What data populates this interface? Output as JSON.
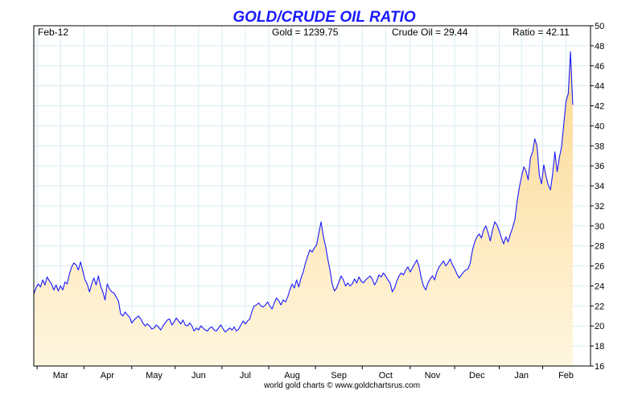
{
  "header": {
    "title": "GOLD/CRUDE OIL RATIO",
    "period": "Feb-12",
    "gold": "Gold = 1239.75",
    "crude": "Crude Oil = 29.44",
    "ratio": "Ratio = 42.11"
  },
  "footer": {
    "credit": "world gold charts © www.goldchartsrus.com"
  },
  "colors": {
    "title": "#1a1aff",
    "line": "#1a1aff",
    "fill_top": "#fbd890",
    "fill_bottom": "#fff6e0",
    "grid": "#d8ecf0"
  },
  "chart_data": {
    "type": "area",
    "title": "GOLD/CRUDE OIL RATIO",
    "xlabel": "",
    "ylabel": "",
    "ylim": [
      16,
      50
    ],
    "yticks": [
      16,
      18,
      20,
      22,
      24,
      26,
      28,
      30,
      32,
      34,
      36,
      38,
      40,
      42,
      44,
      46,
      48,
      50
    ],
    "y_axis_position": "right",
    "grid": true,
    "xlim_index": [
      0,
      250
    ],
    "x_month_labels": [
      {
        "label": "Mar",
        "index": 12
      },
      {
        "label": "Apr",
        "index": 33
      },
      {
        "label": "May",
        "index": 54
      },
      {
        "label": "Jun",
        "index": 74
      },
      {
        "label": "Jul",
        "index": 95
      },
      {
        "label": "Aug",
        "index": 116
      },
      {
        "label": "Sep",
        "index": 137
      },
      {
        "label": "Oct",
        "index": 158
      },
      {
        "label": "Nov",
        "index": 179
      },
      {
        "label": "Dec",
        "index": 199
      },
      {
        "label": "Jan",
        "index": 219
      },
      {
        "label": "Feb",
        "index": 239
      }
    ],
    "series": [
      {
        "values": [
          23.2,
          23.8,
          24.2,
          23.9,
          24.6,
          24.1,
          24.9,
          24.5,
          24.2,
          23.6,
          24.1,
          23.5,
          24.0,
          23.6,
          24.4,
          24.2,
          25.2,
          25.9,
          26.3,
          26.1,
          25.6,
          26.4,
          25.5,
          24.6,
          24.2,
          23.4,
          24.2,
          24.8,
          24.1,
          25.0,
          24.0,
          23.4,
          22.6,
          24.2,
          23.7,
          23.4,
          23.3,
          22.9,
          22.5,
          21.2,
          21.0,
          21.4,
          21.1,
          20.9,
          20.3,
          20.6,
          20.8,
          21.0,
          20.7,
          20.3,
          20.0,
          20.2,
          20.0,
          19.7,
          19.8,
          20.1,
          19.9,
          19.6,
          20.0,
          20.3,
          20.6,
          20.7,
          20.1,
          20.4,
          20.8,
          20.5,
          20.2,
          20.6,
          20.1,
          20.0,
          20.3,
          20.0,
          19.5,
          19.8,
          19.6,
          20.0,
          19.8,
          19.6,
          19.5,
          19.8,
          19.9,
          19.6,
          19.5,
          19.8,
          20.1,
          19.7,
          19.4,
          19.6,
          19.8,
          19.6,
          19.9,
          19.5,
          19.7,
          20.1,
          20.5,
          20.2,
          20.5,
          20.7,
          21.5,
          22.0,
          22.1,
          22.3,
          22.0,
          21.9,
          22.1,
          22.4,
          22.0,
          21.7,
          22.3,
          22.8,
          22.5,
          22.1,
          22.6,
          22.4,
          22.9,
          23.6,
          24.2,
          23.8,
          24.6,
          23.9,
          24.8,
          25.4,
          26.3,
          27.0,
          27.6,
          27.4,
          27.8,
          28.1,
          29.3,
          30.4,
          29.0,
          28.0,
          26.7,
          25.6,
          24.2,
          23.5,
          23.8,
          24.4,
          25.0,
          24.6,
          24.0,
          24.3,
          24.0,
          24.2,
          24.7,
          24.3,
          24.9,
          24.5,
          24.3,
          24.6,
          24.8,
          25.0,
          24.7,
          24.1,
          24.5,
          25.1,
          24.9,
          25.3,
          25.0,
          24.6,
          24.3,
          23.4,
          23.8,
          24.5,
          25.0,
          25.3,
          25.1,
          25.6,
          25.9,
          25.4,
          25.8,
          26.2,
          26.6,
          25.9,
          24.8,
          24.0,
          23.6,
          24.3,
          24.7,
          25.0,
          24.6,
          25.4,
          25.9,
          26.2,
          26.5,
          26.0,
          26.3,
          26.7,
          26.1,
          25.7,
          25.2,
          24.8,
          25.1,
          25.4,
          25.6,
          25.7,
          26.3,
          27.6,
          28.4,
          28.9,
          29.2,
          28.8,
          29.6,
          30.0,
          29.3,
          28.5,
          29.6,
          30.4,
          30.1,
          29.5,
          28.8,
          28.2,
          28.9,
          28.4,
          29.2,
          29.8,
          30.6,
          32.4,
          33.8,
          34.9,
          35.9,
          35.5,
          34.6,
          36.8,
          37.4,
          38.7,
          37.9,
          35.1,
          34.2,
          36.1,
          35.0,
          34.1,
          33.6,
          35.2,
          37.4,
          35.4,
          36.8,
          37.9,
          40.2,
          42.5,
          43.2,
          47.4,
          42.1
        ]
      }
    ]
  }
}
